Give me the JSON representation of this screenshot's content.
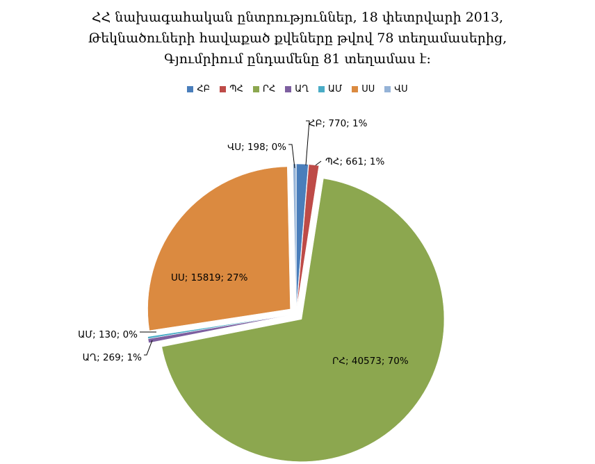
{
  "title_lines": [
    "ՀՀ նախագահական ընտրություններ, 18 փետրվարի 2013,",
    "Թեկնածուների հավաքած քվեները թվով 78 տեղամասերից,",
    "Գյումրիում ընդամենը  81 տեղամաս է:"
  ],
  "chart_data": {
    "type": "pie",
    "series": [
      {
        "name": "ՀԲ",
        "value": 770,
        "percent": "1%",
        "color": "#4a7ebb",
        "label": "ՀԲ; 770; 1%"
      },
      {
        "name": "ՊՀ",
        "value": 661,
        "percent": "1%",
        "color": "#be4b48",
        "label": "ՊՀ; 661; 1%"
      },
      {
        "name": "ՐՀ",
        "value": 40573,
        "percent": "70%",
        "color": "#8ca74f",
        "label": "ՐՀ; 40573; 70%"
      },
      {
        "name": "ԱՂ",
        "value": 269,
        "percent": "1%",
        "color": "#7d5fa0",
        "label": "ԱՂ; 269; 1%"
      },
      {
        "name": "ԱՄ",
        "value": 130,
        "percent": "0%",
        "color": "#4aacc6",
        "label": "ԱՄ; 130; 0%"
      },
      {
        "name": "ՍՍ",
        "value": 15819,
        "percent": "27%",
        "color": "#db8a40",
        "label": "ՍՍ; 15819; 27%"
      },
      {
        "name": "ՎՍ",
        "value": 198,
        "percent": "0%",
        "color": "#95b3d7",
        "label": "ՎՍ; 198; 0%"
      }
    ],
    "legend_position": "top"
  }
}
